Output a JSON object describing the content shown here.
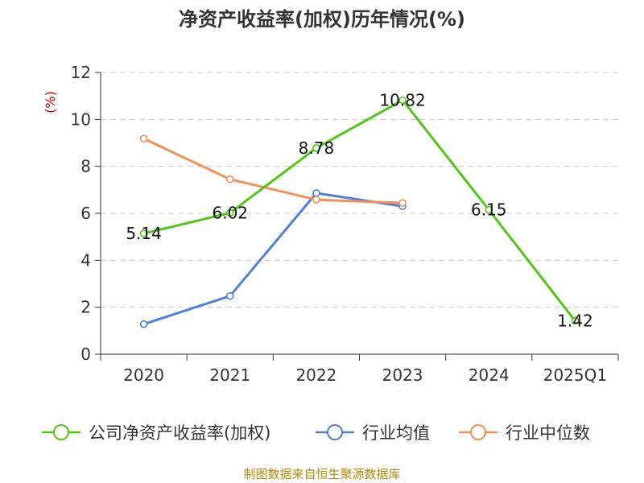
{
  "chart_data": {
    "type": "line",
    "title": "净资产收益率(加权)历年情况(%)",
    "ylabel": "(%)",
    "categories": [
      "2020",
      "2021",
      "2022",
      "2023",
      "2024",
      "2025Q1"
    ],
    "ylim": [
      0,
      12
    ],
    "yticks": [
      "0",
      "2",
      "4",
      "6",
      "8",
      "10",
      "12"
    ],
    "grid": true,
    "legend_position": "bottom",
    "series": [
      {
        "name": "公司净资产收益率(加权)",
        "color": "#52c41a",
        "values": [
          5.14,
          6.02,
          8.78,
          10.82,
          6.15,
          1.42
        ],
        "labels": [
          "5.14",
          "6.02",
          "8.78",
          "10.82",
          "6.15",
          "1.42"
        ]
      },
      {
        "name": "行业均值",
        "color": "#4f7fd8",
        "values": [
          1.28,
          2.48,
          6.86,
          6.3,
          null,
          null
        ]
      },
      {
        "name": "行业中位数",
        "color": "#f58f5a",
        "values": [
          9.18,
          7.45,
          6.58,
          6.44,
          null,
          null
        ]
      }
    ],
    "source": "制图数据来自恒生聚源数据库"
  }
}
